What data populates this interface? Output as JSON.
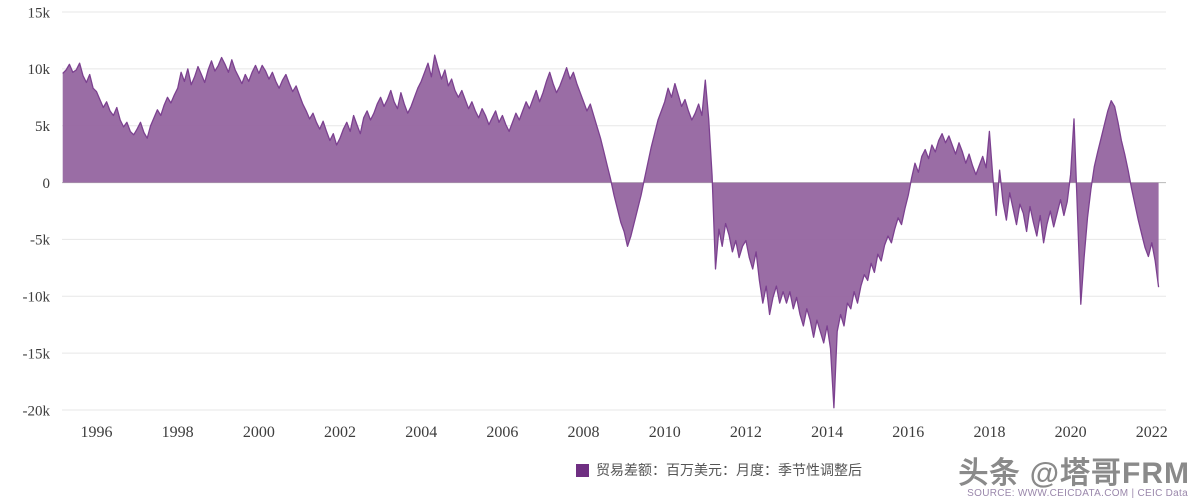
{
  "chart_data": {
    "type": "area",
    "title": "",
    "xlabel": "",
    "ylabel": "",
    "unit": "USD mn (百万美元)",
    "xlim": [
      1995.15,
      2022.35
    ],
    "ylim": [
      -20000,
      15000
    ],
    "grid": true,
    "legend_position": "bottom",
    "x_tick_years": [
      1996,
      1998,
      2000,
      2002,
      2004,
      2006,
      2008,
      2010,
      2012,
      2014,
      2016,
      2018,
      2020,
      2022
    ],
    "y_tick_values": [
      15000,
      10000,
      5000,
      0,
      -5000,
      -10000,
      -15000,
      -20000
    ],
    "y_tick_labels": [
      "15k",
      "10k",
      "5k",
      "0",
      "-5k",
      "-10k",
      "-15k",
      "-20k"
    ],
    "colors": {
      "area_fill": "#9565a0",
      "line": "#7c4190",
      "grid": "#e7e7e7",
      "zero_line": "#b8b8b8",
      "tick_text": "#3d3d3d"
    },
    "series": [
      {
        "name": "贸易差额：百万美元：月度：季节性调整后",
        "frequency": "monthly",
        "start_year": 1995,
        "start_month": 3,
        "values": [
          9600,
          9900,
          10400,
          9700,
          9900,
          10500,
          9400,
          8800,
          9500,
          8300,
          8000,
          7300,
          6600,
          7100,
          6300,
          5900,
          6600,
          5500,
          4900,
          5300,
          4500,
          4200,
          4700,
          5300,
          4400,
          3900,
          5000,
          5700,
          6400,
          5900,
          6800,
          7500,
          7000,
          7700,
          8300,
          9700,
          8900,
          10000,
          8600,
          9300,
          10200,
          9500,
          8800,
          9900,
          10700,
          9800,
          10300,
          11000,
          10400,
          9700,
          10800,
          9900,
          9300,
          8700,
          9500,
          8900,
          9700,
          10300,
          9600,
          10300,
          9800,
          9100,
          9700,
          8900,
          8300,
          9000,
          9500,
          8700,
          8000,
          8500,
          7700,
          6900,
          6300,
          5600,
          6100,
          5300,
          4700,
          5400,
          4500,
          3700,
          4300,
          3300,
          3900,
          4700,
          5300,
          4500,
          5900,
          5100,
          4300,
          5700,
          6300,
          5500,
          6100,
          6900,
          7500,
          6700,
          7300,
          8100,
          7100,
          6500,
          7900,
          6900,
          6100,
          6700,
          7500,
          8300,
          8900,
          9700,
          10500,
          9300,
          11200,
          10100,
          9100,
          9900,
          8500,
          9100,
          8100,
          7500,
          8100,
          7300,
          6500,
          7100,
          6300,
          5700,
          6500,
          5900,
          5100,
          5700,
          6300,
          5300,
          5900,
          5100,
          4500,
          5300,
          6100,
          5500,
          6300,
          7100,
          6500,
          7300,
          8100,
          7100,
          7900,
          8900,
          9700,
          8700,
          7900,
          8500,
          9300,
          10100,
          9100,
          9700,
          8700,
          7900,
          7100,
          6300,
          6900,
          5900,
          4900,
          3900,
          2700,
          1500,
          300,
          -1100,
          -2300,
          -3500,
          -4300,
          -5600,
          -4700,
          -3500,
          -2300,
          -1100,
          300,
          1700,
          3100,
          4300,
          5500,
          6300,
          7100,
          8300,
          7500,
          8700,
          7700,
          6700,
          7300,
          6300,
          5500,
          6100,
          6900,
          5900,
          9000,
          5600,
          600,
          -7600,
          -4100,
          -5600,
          -3600,
          -4600,
          -6100,
          -5100,
          -6600,
          -5600,
          -5100,
          -6600,
          -7600,
          -6100,
          -8600,
          -10600,
          -9100,
          -11600,
          -10100,
          -9100,
          -10600,
          -9600,
          -10600,
          -9600,
          -11100,
          -10100,
          -11600,
          -12600,
          -11100,
          -12100,
          -13600,
          -12100,
          -13100,
          -14100,
          -12600,
          -14600,
          -19800,
          -13100,
          -11600,
          -12600,
          -10600,
          -11100,
          -9600,
          -10600,
          -9100,
          -8100,
          -8600,
          -7100,
          -7900,
          -6300,
          -6900,
          -5500,
          -4700,
          -5300,
          -4100,
          -3100,
          -3700,
          -2300,
          -1100,
          400,
          1700,
          900,
          2300,
          2900,
          2100,
          3300,
          2700,
          3700,
          4300,
          3500,
          4100,
          3300,
          2500,
          3500,
          2700,
          1700,
          2500,
          1500,
          700,
          1500,
          2300,
          1300,
          4500,
          500,
          -2900,
          1100,
          -1700,
          -3300,
          -900,
          -2300,
          -3700,
          -1900,
          -2700,
          -4300,
          -2100,
          -3500,
          -4700,
          -2900,
          -5300,
          -3700,
          -2500,
          -3900,
          -2700,
          -1500,
          -2900,
          -1700,
          700,
          5600,
          -2500,
          -10700,
          -6600,
          -3100,
          -600,
          1400,
          2700,
          3900,
          5100,
          6300,
          7200,
          6700,
          5300,
          3700,
          2500,
          1100,
          -500,
          -1900,
          -3300,
          -4500,
          -5700,
          -6500,
          -5300,
          -6900,
          -9200
        ]
      }
    ]
  },
  "legend": {
    "label": "贸易差额：百万美元：月度：季节性调整后",
    "swatch_color": "#6f2f82"
  },
  "watermark": {
    "text": "头条 @塔哥FRM"
  },
  "source": {
    "text": "SOURCE: WWW.CEICDATA.COM | CEIC Data"
  }
}
